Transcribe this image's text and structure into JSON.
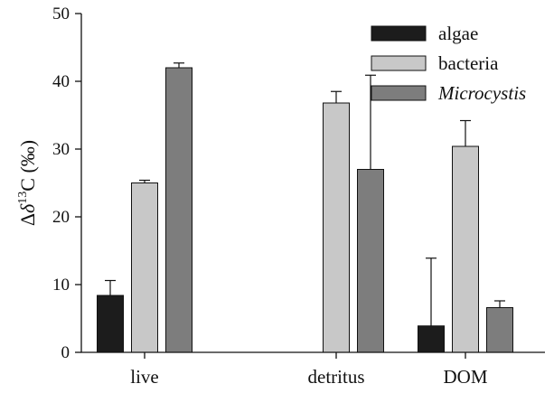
{
  "chart_data": {
    "type": "bar",
    "categories": [
      "live",
      "detritus",
      "DOM"
    ],
    "ylabel": {
      "prefix": "Δ",
      "delta": "δ",
      "sup": "13",
      "suffix": "C (‰)"
    },
    "ylim": [
      0,
      50
    ],
    "yticks": [
      0,
      10,
      20,
      30,
      40,
      50
    ],
    "grid": false,
    "legend_position": "top-right",
    "series": [
      {
        "name": "algae",
        "italic": false,
        "color": "#1c1c1c",
        "values": [
          8.4,
          null,
          3.9
        ],
        "errors": [
          2.2,
          null,
          10.0
        ]
      },
      {
        "name": "bacteria",
        "italic": false,
        "color": "#c8c8c8",
        "values": [
          25.0,
          36.8,
          30.4
        ],
        "errors": [
          0.4,
          1.7,
          3.8
        ]
      },
      {
        "name": "Microcystis",
        "italic": true,
        "color": "#7d7d7d",
        "values": [
          42.0,
          27.0,
          6.6
        ],
        "errors": [
          0.7,
          13.9,
          1.0
        ]
      }
    ]
  }
}
